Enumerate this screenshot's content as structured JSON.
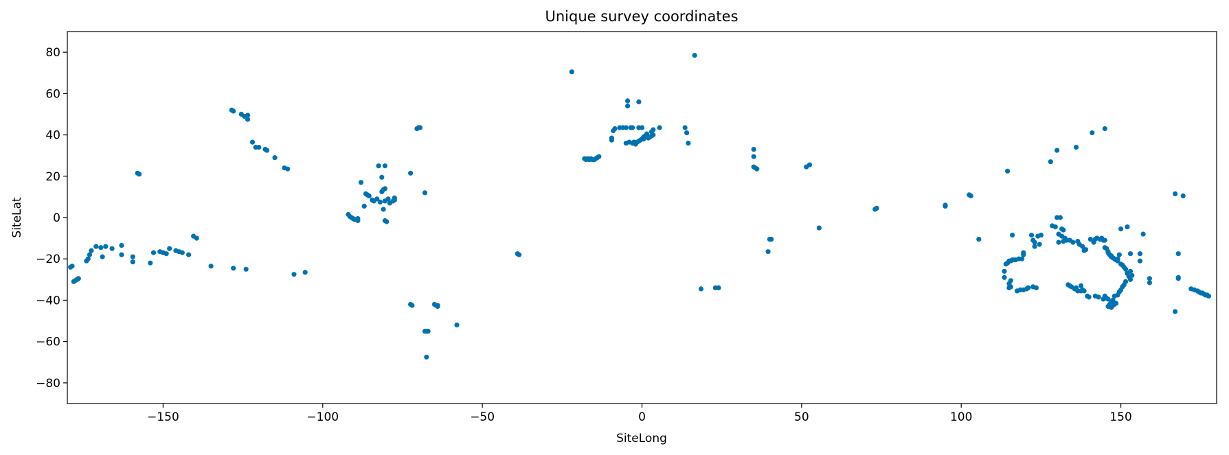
{
  "chart_data": {
    "type": "scatter",
    "title": "Unique survey coordinates",
    "xlabel": "SiteLong",
    "ylabel": "SiteLat",
    "xlim": [
      -180,
      180
    ],
    "ylim": [
      -90,
      90
    ],
    "xticks": [
      -150,
      -100,
      -50,
      0,
      50,
      100,
      150
    ],
    "yticks": [
      -80,
      -60,
      -40,
      -20,
      0,
      20,
      40,
      60,
      80
    ],
    "grid": false,
    "legend": "none",
    "marker_color": "#0072b2",
    "series": [
      {
        "points": [
          [
            -179,
            -24
          ],
          [
            -178.5,
            -23.5
          ],
          [
            -178,
            -31
          ],
          [
            -177.5,
            -30.5
          ],
          [
            -177,
            -30
          ],
          [
            -176.5,
            -29.5
          ],
          [
            -174,
            -21
          ],
          [
            -173.5,
            -20
          ],
          [
            -173,
            -18
          ],
          [
            -172.5,
            -16
          ],
          [
            -171,
            -14
          ],
          [
            -169.5,
            -14.5
          ],
          [
            -168,
            -14
          ],
          [
            -166,
            -15
          ],
          [
            -169,
            -19
          ],
          [
            -163,
            -13.5
          ],
          [
            -163,
            -18
          ],
          [
            -159.5,
            -19
          ],
          [
            -159.5,
            -21.5
          ],
          [
            -158,
            21.5
          ],
          [
            -157.5,
            21
          ],
          [
            -154,
            -22
          ],
          [
            -153,
            -17
          ],
          [
            -151,
            -16.5
          ],
          [
            -150,
            -17
          ],
          [
            -149,
            -17.5
          ],
          [
            -148,
            -15
          ],
          [
            -146,
            -16
          ],
          [
            -145,
            -16.5
          ],
          [
            -144,
            -17
          ],
          [
            -142,
            -18
          ],
          [
            -140.5,
            -9
          ],
          [
            -139.5,
            -10
          ],
          [
            -135,
            -23.5
          ],
          [
            -128.5,
            52
          ],
          [
            -128,
            51.5
          ],
          [
            -128,
            -24.5
          ],
          [
            -125.5,
            50
          ],
          [
            -124.5,
            49
          ],
          [
            -124,
            -25
          ],
          [
            -123.5,
            49.5
          ],
          [
            -123.5,
            47.5
          ],
          [
            -122,
            36.5
          ],
          [
            -121,
            34
          ],
          [
            -120,
            34
          ],
          [
            -118,
            33
          ],
          [
            -117.5,
            32.5
          ],
          [
            -115,
            29
          ],
          [
            -112,
            24
          ],
          [
            -111,
            23.5
          ],
          [
            -109,
            -27.5
          ],
          [
            -105.5,
            -26.5
          ],
          [
            -92,
            1.5
          ],
          [
            -91.5,
            0.5
          ],
          [
            -91,
            0
          ],
          [
            -90.5,
            -0.5
          ],
          [
            -90,
            -1
          ],
          [
            -89.5,
            -1
          ],
          [
            -89,
            -0.5
          ],
          [
            -89,
            -1.5
          ],
          [
            -88,
            17
          ],
          [
            -87,
            5.5
          ],
          [
            -86.5,
            11.5
          ],
          [
            -86,
            11
          ],
          [
            -85.5,
            10.5
          ],
          [
            -84.5,
            8.5
          ],
          [
            -84,
            8
          ],
          [
            -83,
            9
          ],
          [
            -82.5,
            25
          ],
          [
            -82,
            7.5
          ],
          [
            -81.5,
            19.5
          ],
          [
            -81.5,
            12.5
          ],
          [
            -81,
            13.5
          ],
          [
            -81,
            4
          ],
          [
            -80.5,
            25
          ],
          [
            -80.5,
            14
          ],
          [
            -80.5,
            8
          ],
          [
            -80.5,
            -1.5
          ],
          [
            -80,
            -2
          ],
          [
            -79.5,
            9
          ],
          [
            -79,
            7
          ],
          [
            -78,
            8
          ],
          [
            -77.5,
            9.5
          ],
          [
            -77.5,
            8.5
          ],
          [
            -72.5,
            21.5
          ],
          [
            -72.5,
            -42
          ],
          [
            -72,
            -42.5
          ],
          [
            -70.5,
            43
          ],
          [
            -70,
            43.5
          ],
          [
            -69.5,
            43.5
          ],
          [
            -68,
            12
          ],
          [
            -68,
            -55
          ],
          [
            -67.5,
            -55
          ],
          [
            -67.5,
            -67.5
          ],
          [
            -67,
            -55
          ],
          [
            -65,
            -42
          ],
          [
            -64.5,
            -42.5
          ],
          [
            -64,
            -42.5
          ],
          [
            -64,
            -43
          ],
          [
            -58,
            -52
          ],
          [
            -39,
            -17.5
          ],
          [
            -38.5,
            -18
          ],
          [
            -22,
            70.5
          ],
          [
            -18,
            28.5
          ],
          [
            -17.5,
            28
          ],
          [
            -17,
            28.5
          ],
          [
            -16.5,
            28
          ],
          [
            -16,
            28.5
          ],
          [
            -15.5,
            28
          ],
          [
            -15,
            28
          ],
          [
            -14.5,
            28.5
          ],
          [
            -14,
            29
          ],
          [
            -13.5,
            29.5
          ],
          [
            -9.5,
            38.5
          ],
          [
            -9.5,
            37.5
          ],
          [
            -9,
            42
          ],
          [
            -8.5,
            43
          ],
          [
            -7,
            43.5
          ],
          [
            -6,
            43.5
          ],
          [
            -5,
            43.5
          ],
          [
            -5,
            36
          ],
          [
            -4.5,
            54
          ],
          [
            -4.5,
            56.5
          ],
          [
            -4,
            36.5
          ],
          [
            -3.5,
            43.5
          ],
          [
            -3,
            36
          ],
          [
            -3,
            43.5
          ],
          [
            -2.5,
            36.5
          ],
          [
            -2,
            36
          ],
          [
            -2,
            35.5
          ],
          [
            -1.5,
            36.5
          ],
          [
            -1,
            43.5
          ],
          [
            -1,
            56
          ],
          [
            -1,
            37
          ],
          [
            -0.5,
            37.5
          ],
          [
            0,
            38
          ],
          [
            0,
            43.5
          ],
          [
            0.5,
            39
          ],
          [
            0.5,
            38
          ],
          [
            1,
            39.5
          ],
          [
            1.5,
            40.5
          ],
          [
            2,
            38.5
          ],
          [
            2.5,
            39
          ],
          [
            3,
            39.5
          ],
          [
            3,
            41.5
          ],
          [
            3.5,
            42.5
          ],
          [
            3.5,
            40
          ],
          [
            5.5,
            43.5
          ],
          [
            13.5,
            43.5
          ],
          [
            14,
            41
          ],
          [
            14.5,
            36
          ],
          [
            16.5,
            78.5
          ],
          [
            18.5,
            -34.5
          ],
          [
            23,
            -34
          ],
          [
            24,
            -34
          ],
          [
            35,
            33
          ],
          [
            35,
            29.5
          ],
          [
            35,
            24.5
          ],
          [
            35.5,
            24
          ],
          [
            36,
            23.5
          ],
          [
            39.5,
            -16.5
          ],
          [
            40,
            -10.5
          ],
          [
            40.5,
            -10.5
          ],
          [
            51.5,
            24.5
          ],
          [
            52.5,
            25.5
          ],
          [
            55.5,
            -5
          ],
          [
            73,
            4
          ],
          [
            73.5,
            4.5
          ],
          [
            95,
            5.5
          ],
          [
            95,
            6
          ],
          [
            102.5,
            11
          ],
          [
            103,
            10.5
          ],
          [
            105.5,
            -10.5
          ],
          [
            113.5,
            -26
          ],
          [
            113.5,
            -29
          ],
          [
            114,
            -22.5
          ],
          [
            114.5,
            -22
          ],
          [
            114.5,
            22.5
          ],
          [
            115,
            -21
          ],
          [
            115,
            -32
          ],
          [
            115,
            -34
          ],
          [
            115.5,
            -21
          ],
          [
            115.5,
            -30.5
          ],
          [
            115.5,
            -33.5
          ],
          [
            116,
            -20.5
          ],
          [
            116,
            -8.5
          ],
          [
            116.5,
            -20.5
          ],
          [
            117,
            -20.5
          ],
          [
            117.5,
            -35.5
          ],
          [
            118,
            -20
          ],
          [
            118.5,
            -35
          ],
          [
            119,
            -20
          ],
          [
            119.5,
            -18
          ],
          [
            119.5,
            -17
          ],
          [
            119.5,
            -35
          ],
          [
            120.5,
            -34.5
          ],
          [
            121,
            -34
          ],
          [
            122,
            -8.5
          ],
          [
            122.5,
            -33.5
          ],
          [
            122.5,
            -11
          ],
          [
            123,
            -14
          ],
          [
            123,
            -12
          ],
          [
            123.5,
            -34
          ],
          [
            124,
            -9
          ],
          [
            124.5,
            -13
          ],
          [
            125,
            -8.5
          ],
          [
            128,
            27
          ],
          [
            128.5,
            -4
          ],
          [
            129.5,
            -4.5
          ],
          [
            130,
            0
          ],
          [
            130,
            32.5
          ],
          [
            130.5,
            -8
          ],
          [
            130.5,
            -12
          ],
          [
            131,
            0
          ],
          [
            131.5,
            -5.5
          ],
          [
            131.5,
            -9
          ],
          [
            132,
            -6
          ],
          [
            132,
            -11.5
          ],
          [
            132.5,
            -10
          ],
          [
            133,
            -11
          ],
          [
            133.5,
            -32.5
          ],
          [
            134,
            -11
          ],
          [
            134,
            -33
          ],
          [
            134.5,
            -33.5
          ],
          [
            135,
            -12
          ],
          [
            135.5,
            -34.5
          ],
          [
            136,
            -34
          ],
          [
            136,
            34
          ],
          [
            136.5,
            -11.5
          ],
          [
            136.5,
            -35.5
          ],
          [
            137,
            -13
          ],
          [
            137.5,
            -33
          ],
          [
            137.5,
            -35.5
          ],
          [
            138,
            -14
          ],
          [
            138,
            -35
          ],
          [
            138.5,
            -16
          ],
          [
            138.5,
            -35.5
          ],
          [
            139,
            -15.5
          ],
          [
            139.5,
            -38
          ],
          [
            140,
            -38.5
          ],
          [
            140.5,
            -10.5
          ],
          [
            141,
            41
          ],
          [
            141.5,
            -12
          ],
          [
            142,
            -38
          ],
          [
            142,
            -10.5
          ],
          [
            142.5,
            -10
          ],
          [
            143,
            -38.5
          ],
          [
            143.5,
            -10.5
          ],
          [
            144,
            -10
          ],
          [
            144.5,
            -11
          ],
          [
            144.5,
            -39.5
          ],
          [
            145,
            43
          ],
          [
            145,
            -11
          ],
          [
            145,
            -38
          ],
          [
            145,
            -14.5
          ],
          [
            145.5,
            -15
          ],
          [
            145.5,
            -39
          ],
          [
            146,
            -16.5
          ],
          [
            146,
            -17
          ],
          [
            146,
            -39.5
          ],
          [
            146,
            -43
          ],
          [
            146.5,
            -18
          ],
          [
            146.5,
            -42
          ],
          [
            147,
            -18.5
          ],
          [
            147,
            -19
          ],
          [
            147,
            -41
          ],
          [
            147,
            -43.5
          ],
          [
            147.5,
            -40
          ],
          [
            147.5,
            -42.5
          ],
          [
            147.5,
            -19.5
          ],
          [
            148,
            -20
          ],
          [
            148,
            -38
          ],
          [
            148,
            -42
          ],
          [
            148.5,
            -20.5
          ],
          [
            148.5,
            -41.5
          ],
          [
            149,
            -21
          ],
          [
            149,
            -37.5
          ],
          [
            149,
            -20
          ],
          [
            149.5,
            -18
          ],
          [
            149.5,
            -36
          ],
          [
            150,
            -22.5
          ],
          [
            150,
            -35
          ],
          [
            150,
            -5.5
          ],
          [
            150.5,
            -23
          ],
          [
            150.5,
            -33.5
          ],
          [
            151,
            -24
          ],
          [
            151,
            -32.5
          ],
          [
            151.5,
            -25
          ],
          [
            151.5,
            -31
          ],
          [
            152,
            -4.5
          ],
          [
            152,
            -27
          ],
          [
            152.5,
            -28.5
          ],
          [
            153,
            -30
          ],
          [
            153,
            -26
          ],
          [
            153.5,
            -28
          ],
          [
            153,
            -17.5
          ],
          [
            156,
            -17.5
          ],
          [
            156,
            -21
          ],
          [
            157,
            -8
          ],
          [
            159,
            -29.5
          ],
          [
            159,
            -31.5
          ],
          [
            167,
            -45.5
          ],
          [
            167,
            11.5
          ],
          [
            168,
            -29
          ],
          [
            168,
            -17.5
          ],
          [
            168,
            -29.5
          ],
          [
            169.5,
            10.5
          ],
          [
            172,
            -34.5
          ],
          [
            173,
            -35
          ],
          [
            174,
            -35.5
          ],
          [
            174.5,
            -36
          ],
          [
            175,
            -36.5
          ],
          [
            175.5,
            -36.5
          ],
          [
            176,
            -37
          ],
          [
            176.5,
            -37.5
          ],
          [
            177,
            -37.5
          ],
          [
            177.5,
            -38
          ]
        ]
      }
    ]
  }
}
